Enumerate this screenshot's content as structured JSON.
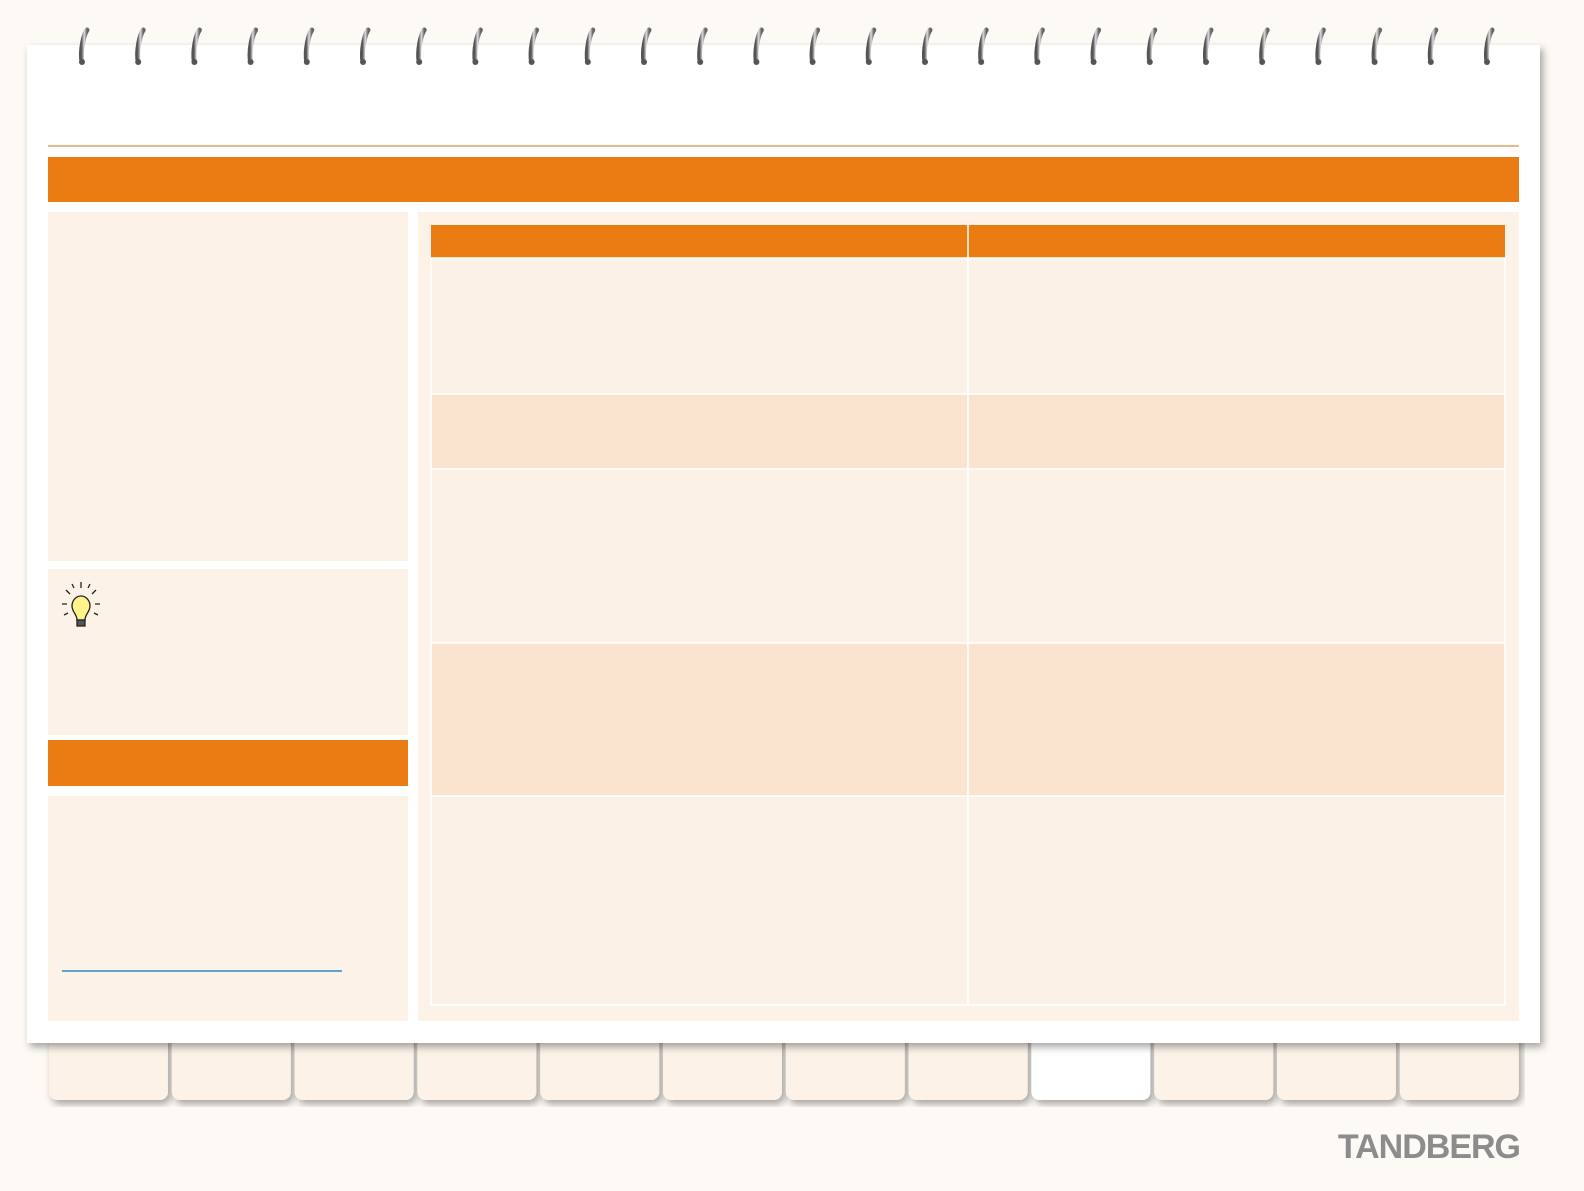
{
  "brand": "TANDBERG"
}
